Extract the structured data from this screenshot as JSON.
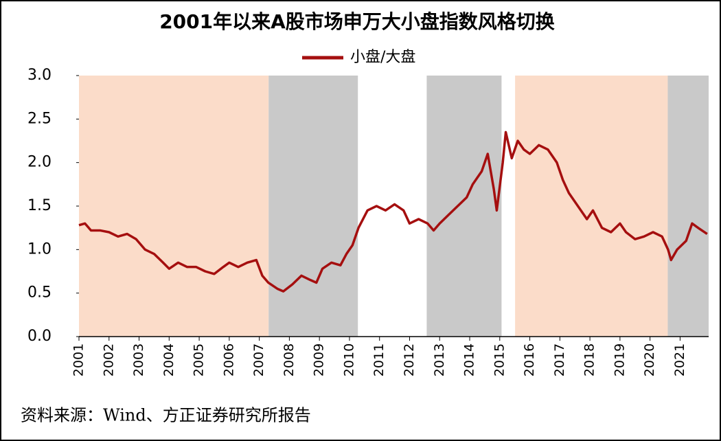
{
  "chart_data": {
    "type": "line",
    "title": "2001年以来A股市场申万大小盘指数风格切换",
    "source": "资料来源：Wind、方正证券研究所报告",
    "x": [
      2001.0,
      2001.2,
      2001.4,
      2001.7,
      2002.0,
      2002.3,
      2002.6,
      2002.9,
      2003.2,
      2003.5,
      2003.8,
      2004.0,
      2004.3,
      2004.6,
      2004.9,
      2005.2,
      2005.5,
      2005.8,
      2006.0,
      2006.3,
      2006.6,
      2006.9,
      2007.1,
      2007.3,
      2007.6,
      2007.8,
      2008.1,
      2008.4,
      2008.7,
      2008.9,
      2009.1,
      2009.4,
      2009.7,
      2009.9,
      2010.1,
      2010.3,
      2010.6,
      2010.9,
      2011.2,
      2011.5,
      2011.8,
      2012.0,
      2012.3,
      2012.6,
      2012.8,
      2013.0,
      2013.3,
      2013.6,
      2013.9,
      2014.1,
      2014.4,
      2014.6,
      2014.8,
      2014.9,
      2015.1,
      2015.2,
      2015.4,
      2015.6,
      2015.8,
      2016.0,
      2016.3,
      2016.6,
      2016.9,
      2017.1,
      2017.3,
      2017.6,
      2017.9,
      2018.1,
      2018.4,
      2018.7,
      2019.0,
      2019.2,
      2019.5,
      2019.8,
      2020.1,
      2020.4,
      2020.6,
      2020.7,
      2020.9,
      2021.2,
      2021.4,
      2021.6,
      2021.9
    ],
    "series": [
      {
        "name": "小盘/大盘",
        "color": "#a50f0f",
        "values": [
          1.28,
          1.3,
          1.22,
          1.22,
          1.2,
          1.15,
          1.18,
          1.12,
          1.0,
          0.95,
          0.85,
          0.78,
          0.85,
          0.8,
          0.8,
          0.75,
          0.72,
          0.8,
          0.85,
          0.8,
          0.85,
          0.88,
          0.7,
          0.62,
          0.55,
          0.52,
          0.6,
          0.7,
          0.65,
          0.62,
          0.78,
          0.85,
          0.82,
          0.95,
          1.05,
          1.25,
          1.45,
          1.5,
          1.45,
          1.52,
          1.45,
          1.3,
          1.35,
          1.3,
          1.22,
          1.3,
          1.4,
          1.5,
          1.6,
          1.75,
          1.9,
          2.1,
          1.7,
          1.45,
          2.0,
          2.35,
          2.05,
          2.25,
          2.15,
          2.1,
          2.2,
          2.15,
          2.0,
          1.8,
          1.65,
          1.5,
          1.35,
          1.45,
          1.25,
          1.2,
          1.3,
          1.2,
          1.12,
          1.15,
          1.2,
          1.15,
          1.0,
          0.88,
          1.0,
          1.1,
          1.3,
          1.25,
          1.18
        ]
      }
    ],
    "shaded_regions": [
      {
        "start": 2001.0,
        "end": 2007.31,
        "color": "#fbdcc9"
      },
      {
        "start": 2007.31,
        "end": 2010.28,
        "color": "#c9c9c9"
      },
      {
        "start": 2012.57,
        "end": 2015.06,
        "color": "#c9c9c9"
      },
      {
        "start": 2015.51,
        "end": 2020.59,
        "color": "#fbdcc9"
      },
      {
        "start": 2020.59,
        "end": 2021.95,
        "color": "#c9c9c9"
      }
    ],
    "xlim": [
      2001.0,
      2021.95
    ],
    "xticks": [
      2001,
      2002,
      2003,
      2004,
      2005,
      2006,
      2007,
      2008,
      2009,
      2010,
      2011,
      2012,
      2013,
      2014,
      2015,
      2016,
      2017,
      2018,
      2019,
      2020,
      2021
    ],
    "ylim": [
      0,
      3
    ],
    "yticks": [
      {
        "value": 0,
        "label": "0.0"
      },
      0.5,
      {
        "value": 1,
        "label": "1.0"
      },
      1.5,
      {
        "value": 2,
        "label": "2.0"
      },
      2.5,
      {
        "value": 3,
        "label": "3.0"
      }
    ],
    "legend": "top"
  }
}
